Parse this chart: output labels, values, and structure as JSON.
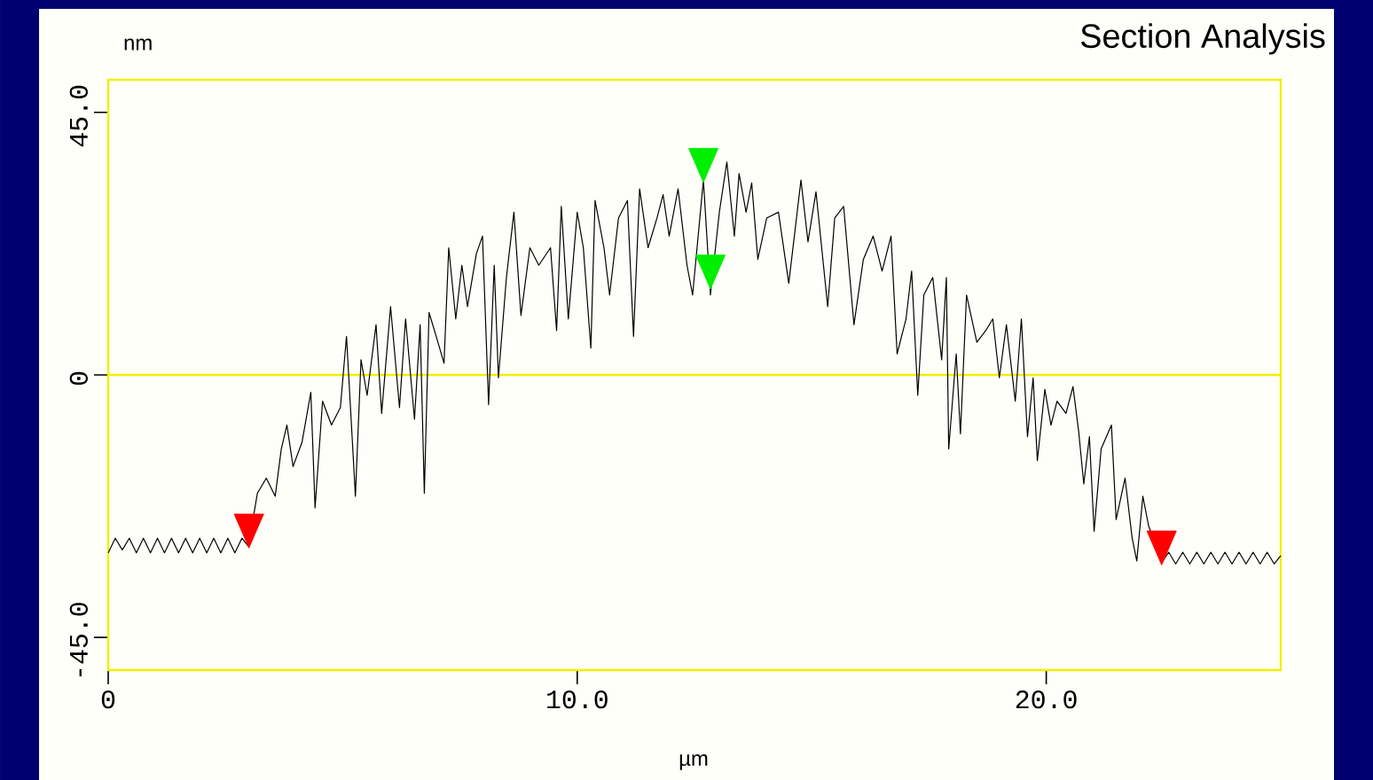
{
  "chart_data": {
    "type": "line",
    "title": "Section Analysis",
    "xlabel": "µm",
    "ylabel": "nm",
    "xlim": [
      0,
      25
    ],
    "ylim": [
      -50.6,
      50.6
    ],
    "xticks": [
      0,
      {
        "value": 10,
        "label": "10.0"
      },
      {
        "value": 20,
        "label": "20.0"
      }
    ],
    "yticks": [
      {
        "value": -45,
        "label": "-45.0"
      },
      0,
      {
        "value": 45,
        "label": "45.0"
      }
    ],
    "grid": false,
    "ref_lines": [
      {
        "axis": "y",
        "value": 0,
        "color": "#f0f000"
      }
    ],
    "series": [
      {
        "color": "#000000",
        "marker": "none",
        "x": [
          0,
          0.15,
          0.3,
          0.45,
          0.6,
          0.75,
          0.9,
          1.05,
          1.2,
          1.35,
          1.5,
          1.65,
          1.8,
          1.95,
          2.1,
          2.25,
          2.4,
          2.55,
          2.7,
          2.85,
          2.99,
          3.18,
          3.37,
          3.56,
          3.69,
          3.81,
          3.94,
          4.13,
          4.32,
          4.41,
          4.57,
          4.76,
          4.95,
          5.08,
          5.2,
          5.27,
          5.39,
          5.52,
          5.71,
          5.83,
          6.02,
          6.21,
          6.34,
          6.53,
          6.65,
          6.74,
          6.84,
          7.03,
          7.16,
          7.26,
          7.41,
          7.54,
          7.66,
          7.85,
          7.98,
          8.11,
          8.23,
          8.32,
          8.49,
          8.65,
          8.8,
          8.99,
          9.18,
          9.43,
          9.56,
          9.66,
          9.81,
          10.0,
          10.13,
          10.29,
          10.38,
          10.57,
          10.69,
          10.88,
          11.07,
          11.2,
          11.33,
          11.51,
          11.7,
          11.83,
          11.96,
          12.15,
          12.34,
          12.46,
          12.69,
          12.84,
          13.03,
          13.19,
          13.35,
          13.45,
          13.6,
          13.72,
          13.85,
          14.04,
          14.29,
          14.51,
          14.77,
          14.92,
          15.09,
          15.34,
          15.49,
          15.68,
          15.9,
          16.1,
          16.31,
          16.5,
          16.69,
          16.82,
          17.01,
          17.13,
          17.26,
          17.39,
          17.58,
          17.77,
          17.87,
          17.92,
          18.08,
          18.17,
          18.3,
          18.52,
          18.71,
          18.86,
          19.0,
          19.15,
          19.34,
          19.47,
          19.6,
          19.72,
          19.81,
          19.97,
          20.1,
          20.23,
          20.42,
          20.57,
          20.69,
          20.8,
          20.92,
          21.02,
          21.17,
          21.39,
          21.49,
          21.68,
          21.83,
          21.93,
          22.06,
          22.18,
          22.46,
          22.61,
          22.76,
          22.91,
          23.06,
          23.21,
          23.36,
          23.51,
          23.66,
          23.81,
          23.96,
          24.11,
          24.26,
          24.41,
          24.56,
          24.71,
          24.86,
          25.0
        ],
        "values": [
          -30.5,
          -28.0,
          -30.0,
          -28.0,
          -30.5,
          -28.0,
          -30.5,
          -28.0,
          -30.5,
          -28.0,
          -30.5,
          -28.0,
          -30.5,
          -28.0,
          -30.5,
          -28.0,
          -30.5,
          -28.0,
          -30.5,
          -28.0,
          -29.4,
          -20.3,
          -17.7,
          -20.8,
          -12.7,
          -8.6,
          -15.7,
          -11.6,
          -3.0,
          -22.8,
          -4.5,
          -8.6,
          -5.6,
          6.6,
          -10.6,
          -20.8,
          2.6,
          -3.5,
          8.6,
          -6.6,
          11.7,
          -5.6,
          9.6,
          -7.6,
          8.6,
          -20.3,
          10.7,
          5.6,
          2.0,
          21.8,
          9.6,
          18.8,
          11.7,
          20.8,
          23.8,
          -5.1,
          18.8,
          -0.5,
          16.7,
          27.9,
          10.2,
          21.8,
          18.8,
          21.8,
          7.6,
          28.9,
          9.6,
          27.9,
          21.8,
          4.6,
          29.9,
          21.8,
          13.7,
          26.9,
          29.9,
          6.6,
          31.9,
          21.8,
          26.9,
          30.9,
          23.8,
          31.9,
          18.8,
          13.7,
          33.4,
          13.7,
          27.9,
          36.5,
          23.8,
          34.5,
          27.9,
          32.9,
          19.8,
          26.9,
          27.9,
          15.7,
          33.4,
          22.8,
          31.4,
          11.7,
          26.9,
          28.9,
          8.6,
          19.8,
          23.8,
          17.8,
          23.8,
          3.6,
          9.6,
          17.8,
          -3.5,
          13.7,
          16.7,
          2.6,
          16.7,
          -12.7,
          3.6,
          -10.1,
          13.7,
          5.6,
          7.6,
          9.6,
          -0.5,
          8.6,
          -4.5,
          9.6,
          -10.6,
          -0.5,
          -14.7,
          -2.5,
          -8.6,
          -4.5,
          -6.6,
          -2.0,
          -9.6,
          -18.7,
          -10.6,
          -26.8,
          -12.7,
          -8.6,
          -24.8,
          -17.7,
          -27.9,
          -31.9,
          -20.8,
          -25.8,
          -32.2,
          -30.4,
          -32.4,
          -30.4,
          -32.4,
          -30.4,
          -32.4,
          -30.4,
          -32.4,
          -30.4,
          -32.4,
          -30.4,
          -32.4,
          -30.4,
          -32.4,
          -30.4,
          -32.4,
          -31.0
        ]
      },
      {
        "type": "scatter",
        "marker": "triangle",
        "colors": [
          "#ff0000",
          "#00ee00",
          "#00ee00",
          "#ff0000"
        ],
        "x": [
          3.0,
          12.69,
          12.84,
          22.46
        ],
        "values": [
          -25.8,
          36.9,
          18.6,
          -28.7
        ]
      }
    ]
  }
}
